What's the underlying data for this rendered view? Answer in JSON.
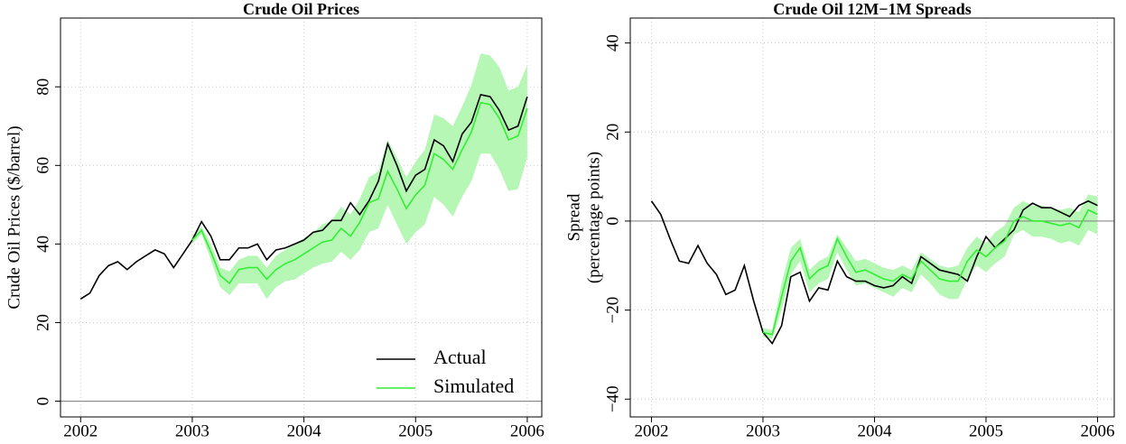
{
  "chart_data": [
    {
      "type": "line",
      "title": "Crude Oil Prices",
      "y_label": [
        "Crude Oil Prices ($/barrel)"
      ],
      "x": [
        2002,
        2002.083,
        2002.167,
        2002.25,
        2002.333,
        2002.417,
        2002.5,
        2002.583,
        2002.667,
        2002.75,
        2002.833,
        2002.917,
        2003,
        2003.083,
        2003.167,
        2003.25,
        2003.333,
        2003.417,
        2003.5,
        2003.583,
        2003.667,
        2003.75,
        2003.833,
        2003.917,
        2004,
        2004.083,
        2004.167,
        2004.25,
        2004.333,
        2004.417,
        2004.5,
        2004.583,
        2004.667,
        2004.75,
        2004.833,
        2004.917,
        2005,
        2005.083,
        2005.167,
        2005.25,
        2005.333,
        2005.417,
        2005.5,
        2005.583,
        2005.667,
        2005.75,
        2005.833,
        2005.917,
        2006
      ],
      "series": [
        {
          "name": "Actual",
          "color": "#000000",
          "values": [
            26,
            27.5,
            32,
            34.5,
            35.5,
            33.5,
            35.5,
            37,
            38.5,
            37.5,
            34,
            37.5,
            41,
            45.7,
            42,
            36,
            36,
            39,
            39,
            40,
            36,
            38.5,
            39,
            40,
            41,
            43,
            43.5,
            46,
            46,
            50.5,
            47.5,
            51,
            56,
            65.5,
            60,
            53.5,
            57.5,
            59,
            66.5,
            65,
            61,
            68,
            71,
            78,
            77.5,
            74,
            69,
            70,
            77.5
          ]
        },
        {
          "name": "Simulated",
          "color": "#33ee33",
          "values": [
            null,
            null,
            null,
            null,
            null,
            null,
            null,
            null,
            null,
            null,
            null,
            null,
            41,
            43.5,
            38,
            32,
            30,
            33.5,
            34,
            34,
            31,
            33.5,
            35,
            36,
            37.5,
            39,
            40.5,
            41,
            44,
            42,
            45.5,
            50.5,
            51.5,
            58.5,
            54,
            49,
            52.5,
            55,
            63,
            61.5,
            59,
            64,
            68.5,
            76,
            75.5,
            72,
            66.5,
            67.5,
            74.5
          ]
        }
      ],
      "band": {
        "color": "#b6f7b6",
        "upper": [
          null,
          null,
          null,
          null,
          null,
          null,
          null,
          null,
          null,
          null,
          null,
          null,
          42,
          44.5,
          40,
          34,
          33,
          36,
          37,
          37,
          34,
          37,
          38.5,
          40,
          41.5,
          43,
          45,
          46,
          49.5,
          47.5,
          51.5,
          57,
          58.5,
          66.5,
          62,
          57,
          61,
          64,
          73,
          72,
          70,
          75,
          80.5,
          88.5,
          88,
          85,
          79,
          80,
          85.5
        ],
        "lower": [
          null,
          null,
          null,
          null,
          null,
          null,
          null,
          null,
          null,
          null,
          null,
          null,
          40,
          42.5,
          36,
          29,
          27,
          30,
          30,
          30,
          26,
          29,
          30.5,
          31,
          32.5,
          34,
          35,
          35.5,
          38,
          36,
          38.5,
          43,
          44,
          50,
          45,
          40,
          43,
          45,
          52,
          50,
          47,
          52,
          56,
          63,
          63,
          59,
          53.5,
          54,
          62
        ]
      },
      "hline": 0,
      "xlim": [
        2001.82,
        2006.13
      ],
      "ylim": [
        -4,
        97.5
      ],
      "xticks": [
        2002,
        2003,
        2004,
        2005,
        2006
      ],
      "yticks": [
        0,
        20,
        40,
        60,
        80
      ],
      "grid": true,
      "legend": "bottom-right"
    },
    {
      "type": "line",
      "title": "Crude Oil 12M−1M Spreads",
      "y_label": [
        "Spread",
        "(percentage points)"
      ],
      "x": [
        2002,
        2002.083,
        2002.167,
        2002.25,
        2002.333,
        2002.417,
        2002.5,
        2002.583,
        2002.667,
        2002.75,
        2002.833,
        2002.917,
        2003,
        2003.083,
        2003.167,
        2003.25,
        2003.333,
        2003.417,
        2003.5,
        2003.583,
        2003.667,
        2003.75,
        2003.833,
        2003.917,
        2004,
        2004.083,
        2004.167,
        2004.25,
        2004.333,
        2004.417,
        2004.5,
        2004.583,
        2004.667,
        2004.75,
        2004.833,
        2004.917,
        2005,
        2005.083,
        2005.167,
        2005.25,
        2005.333,
        2005.417,
        2005.5,
        2005.583,
        2005.667,
        2005.75,
        2005.833,
        2005.917,
        2006
      ],
      "series": [
        {
          "name": "Actual",
          "color": "#000000",
          "values": [
            4.5,
            1.5,
            -4,
            -9,
            -9.5,
            -5.5,
            -9.5,
            -12,
            -16.5,
            -15.5,
            -10,
            -18,
            -25,
            -27.5,
            -23.5,
            -12.5,
            -11.5,
            -18,
            -15,
            -15.5,
            -9,
            -12.5,
            -13.5,
            -13.5,
            -14.5,
            -15,
            -14.5,
            -12.5,
            -14,
            -8,
            -9.5,
            -11,
            -11.5,
            -12,
            -13.5,
            -8,
            -3.5,
            -6,
            -4,
            -2,
            2.5,
            4,
            3,
            3,
            2,
            1,
            3.5,
            4.5,
            3.5
          ]
        },
        {
          "name": "Simulated",
          "color": "#33ee33",
          "values": [
            null,
            null,
            null,
            null,
            null,
            null,
            null,
            null,
            null,
            null,
            null,
            null,
            -25,
            -25.5,
            -17,
            -9,
            -6,
            -13,
            -11,
            -10,
            -4,
            -8,
            -11.5,
            -11,
            -12,
            -13,
            -13.5,
            -12,
            -13,
            -9,
            -11,
            -13,
            -13.5,
            -13.5,
            -9,
            -6.5,
            -8,
            -6,
            -4.5,
            0,
            1,
            0,
            0,
            -0.5,
            -1,
            -0.5,
            -1.5,
            2.5,
            1.5
          ]
        }
      ],
      "band": {
        "color": "#b6f7b6",
        "upper": [
          null,
          null,
          null,
          null,
          null,
          null,
          null,
          null,
          null,
          null,
          null,
          null,
          -24,
          -24.5,
          -14,
          -6,
          -4,
          -11,
          -9,
          -8,
          -3,
          -6,
          -9,
          -8.5,
          -9.5,
          -10.5,
          -11,
          -10,
          -11,
          -7,
          -8.5,
          -10,
          -10.5,
          -10,
          -6,
          -3.5,
          -5,
          -2.5,
          -1,
          3,
          4.5,
          3.5,
          3.5,
          3,
          2.5,
          3,
          2,
          6,
          5.5
        ],
        "lower": [
          null,
          null,
          null,
          null,
          null,
          null,
          null,
          null,
          null,
          null,
          null,
          null,
          -26,
          -26.5,
          -20,
          -12,
          -9,
          -16,
          -14,
          -13,
          -7,
          -11,
          -14.5,
          -14,
          -15,
          -16,
          -17,
          -15,
          -16,
          -12,
          -14,
          -16.5,
          -17.5,
          -17.5,
          -13,
          -10,
          -11.5,
          -9.5,
          -8,
          -3,
          -2,
          -3.5,
          -3.5,
          -4,
          -5,
          -4.5,
          -5.5,
          -2,
          -3
        ]
      },
      "hline": 0,
      "xlim": [
        2001.81,
        2006.15
      ],
      "ylim": [
        -44,
        45.6
      ],
      "xticks": [
        2002,
        2003,
        2004,
        2005,
        2006
      ],
      "yticks": [
        {
          "value": -40,
          "label": "−40"
        },
        {
          "value": -20,
          "label": "−20"
        },
        0,
        20,
        40
      ],
      "grid": true
    }
  ]
}
